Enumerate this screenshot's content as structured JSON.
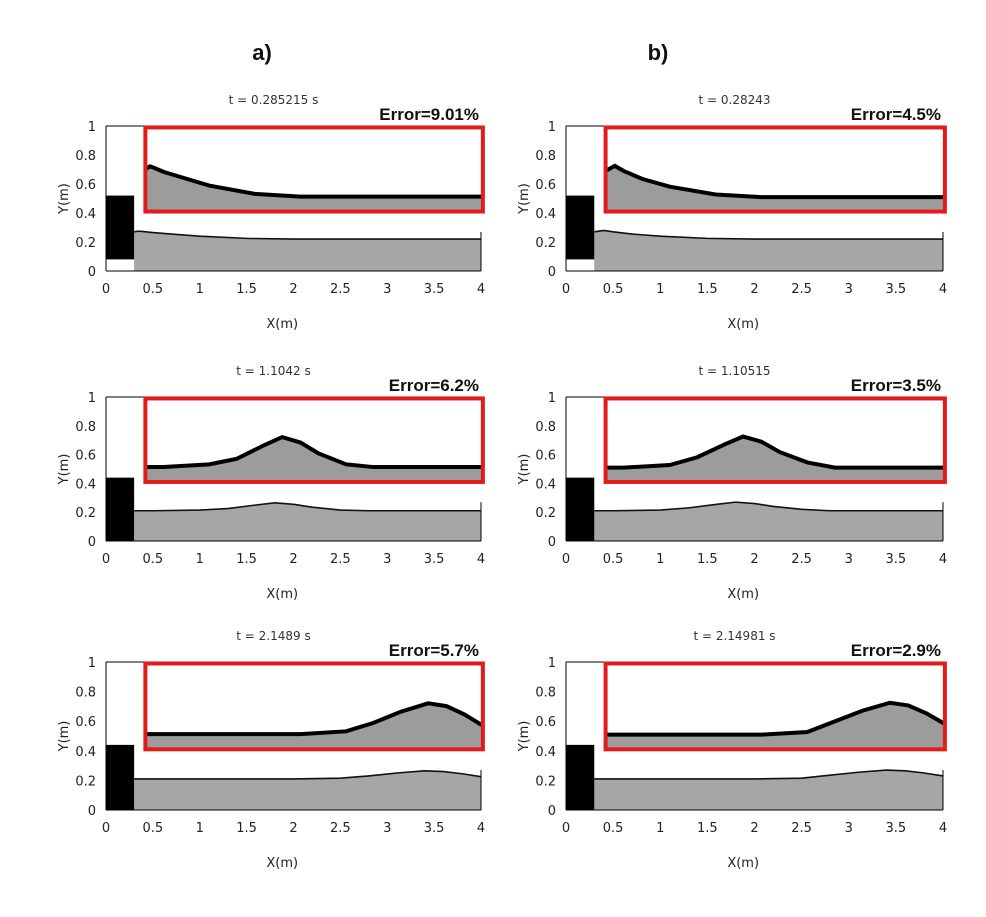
{
  "columns": [
    "a)",
    "b)"
  ],
  "colors": {
    "fluid": "#a6a6a6",
    "inset_fluid": "#9c9c9c",
    "surface_line": "#111111",
    "inset_line": "#000000",
    "highlight_box": "#e21b1b",
    "block": "#000000",
    "axis": "#000000"
  },
  "chart_data": [
    {
      "type": "area",
      "column": "a)",
      "time_label": "t = 0.285215 s",
      "error_label": "Error=9.01%",
      "xlabel": "X(m)",
      "ylabel": "Y(m)",
      "xlim": [
        0,
        4
      ],
      "ylim": [
        0,
        1
      ],
      "xticks": [
        "0",
        "0.5",
        "1",
        "1.5",
        "2",
        "2.5",
        "3",
        "3.5",
        "4"
      ],
      "yticks": [
        "0",
        "0.2",
        "0.4",
        "0.6",
        "0.8",
        "1"
      ],
      "block": {
        "x": [
          0,
          0.3
        ],
        "y": [
          0.08,
          0.52
        ]
      },
      "x": [
        0.3,
        0.35,
        0.4,
        0.5,
        0.7,
        1.0,
        1.5,
        2.0,
        2.5,
        3.0,
        3.5,
        4.0
      ],
      "y": [
        0.27,
        0.275,
        0.272,
        0.265,
        0.255,
        0.24,
        0.225,
        0.22,
        0.22,
        0.22,
        0.22,
        0.22
      ],
      "grid": false
    },
    {
      "type": "area",
      "column": "b)",
      "time_label": "t = 0.28243",
      "error_label": "Error=4.5%",
      "xlabel": "X(m)",
      "ylabel": "Y(m)",
      "xlim": [
        0,
        4
      ],
      "ylim": [
        0,
        1
      ],
      "xticks": [
        "0",
        "0.5",
        "1",
        "1.5",
        "2",
        "2.5",
        "3",
        "3.5",
        "4"
      ],
      "yticks": [
        "0",
        "0.2",
        "0.4",
        "0.6",
        "0.8",
        "1"
      ],
      "block": {
        "x": [
          0,
          0.3
        ],
        "y": [
          0.08,
          0.52
        ]
      },
      "x": [
        0.3,
        0.4,
        0.5,
        0.7,
        1.0,
        1.5,
        2.0,
        2.5,
        3.0,
        3.5,
        4.0
      ],
      "y": [
        0.27,
        0.28,
        0.27,
        0.255,
        0.24,
        0.225,
        0.22,
        0.22,
        0.22,
        0.22,
        0.22
      ],
      "grid": false
    },
    {
      "type": "area",
      "column": "a)",
      "time_label": "t = 1.1042 s",
      "error_label": "Error=6.2%",
      "xlabel": "X(m)",
      "ylabel": "Y(m)",
      "xlim": [
        0,
        4
      ],
      "ylim": [
        0,
        1
      ],
      "xticks": [
        "0",
        "0.5",
        "1",
        "1.5",
        "2",
        "2.5",
        "3",
        "3.5",
        "4"
      ],
      "yticks": [
        "0",
        "0.2",
        "0.4",
        "0.6",
        "0.8",
        "1"
      ],
      "block": {
        "x": [
          0,
          0.3
        ],
        "y": [
          0,
          0.44
        ]
      },
      "x": [
        0.3,
        0.5,
        1.0,
        1.3,
        1.6,
        1.8,
        2.0,
        2.2,
        2.5,
        2.8,
        3.0,
        3.5,
        4.0
      ],
      "y": [
        0.21,
        0.21,
        0.215,
        0.225,
        0.25,
        0.265,
        0.255,
        0.235,
        0.215,
        0.21,
        0.21,
        0.21,
        0.21
      ],
      "grid": false
    },
    {
      "type": "area",
      "column": "b)",
      "time_label": "t = 1.10515",
      "error_label": "Error=3.5%",
      "xlabel": "X(m)",
      "ylabel": "Y(m)",
      "xlim": [
        0,
        4
      ],
      "ylim": [
        0,
        1
      ],
      "xticks": [
        "0",
        "0.5",
        "1",
        "1.5",
        "2",
        "2.5",
        "3",
        "3.5",
        "4"
      ],
      "yticks": [
        "0",
        "0.2",
        "0.4",
        "0.6",
        "0.8",
        "1"
      ],
      "block": {
        "x": [
          0,
          0.3
        ],
        "y": [
          0,
          0.44
        ]
      },
      "x": [
        0.3,
        0.5,
        1.0,
        1.3,
        1.6,
        1.8,
        2.0,
        2.2,
        2.5,
        2.8,
        3.0,
        3.5,
        4.0
      ],
      "y": [
        0.21,
        0.21,
        0.215,
        0.23,
        0.255,
        0.27,
        0.26,
        0.24,
        0.22,
        0.21,
        0.21,
        0.21,
        0.21
      ],
      "grid": false
    },
    {
      "type": "area",
      "column": "a)",
      "time_label": "t = 2.1489 s",
      "error_label": "Error=5.7%",
      "xlabel": "X(m)",
      "ylabel": "Y(m)",
      "xlim": [
        0,
        4
      ],
      "ylim": [
        0,
        1
      ],
      "xticks": [
        "0",
        "0.5",
        "1",
        "1.5",
        "2",
        "2.5",
        "3",
        "3.5",
        "4"
      ],
      "yticks": [
        "0",
        "0.2",
        "0.4",
        "0.6",
        "0.8",
        "1"
      ],
      "block": {
        "x": [
          0,
          0.3
        ],
        "y": [
          0,
          0.44
        ]
      },
      "x": [
        0.3,
        1.0,
        2.0,
        2.5,
        2.8,
        3.1,
        3.4,
        3.6,
        3.8,
        4.0
      ],
      "y": [
        0.21,
        0.21,
        0.21,
        0.215,
        0.23,
        0.25,
        0.265,
        0.26,
        0.245,
        0.225
      ],
      "grid": false
    },
    {
      "type": "area",
      "column": "b)",
      "time_label": "t = 2.14981 s",
      "error_label": "Error=2.9%",
      "xlabel": "X(m)",
      "ylabel": "Y(m)",
      "xlim": [
        0,
        4
      ],
      "ylim": [
        0,
        1
      ],
      "xticks": [
        "0",
        "0.5",
        "1",
        "1.5",
        "2",
        "2.5",
        "3",
        "3.5",
        "4"
      ],
      "yticks": [
        "0",
        "0.2",
        "0.4",
        "0.6",
        "0.8",
        "1"
      ],
      "block": {
        "x": [
          0,
          0.3
        ],
        "y": [
          0,
          0.44
        ]
      },
      "x": [
        0.3,
        1.0,
        2.0,
        2.5,
        2.8,
        3.1,
        3.4,
        3.6,
        3.8,
        4.0
      ],
      "y": [
        0.21,
        0.21,
        0.21,
        0.215,
        0.235,
        0.255,
        0.27,
        0.265,
        0.25,
        0.23
      ],
      "grid": false
    }
  ]
}
